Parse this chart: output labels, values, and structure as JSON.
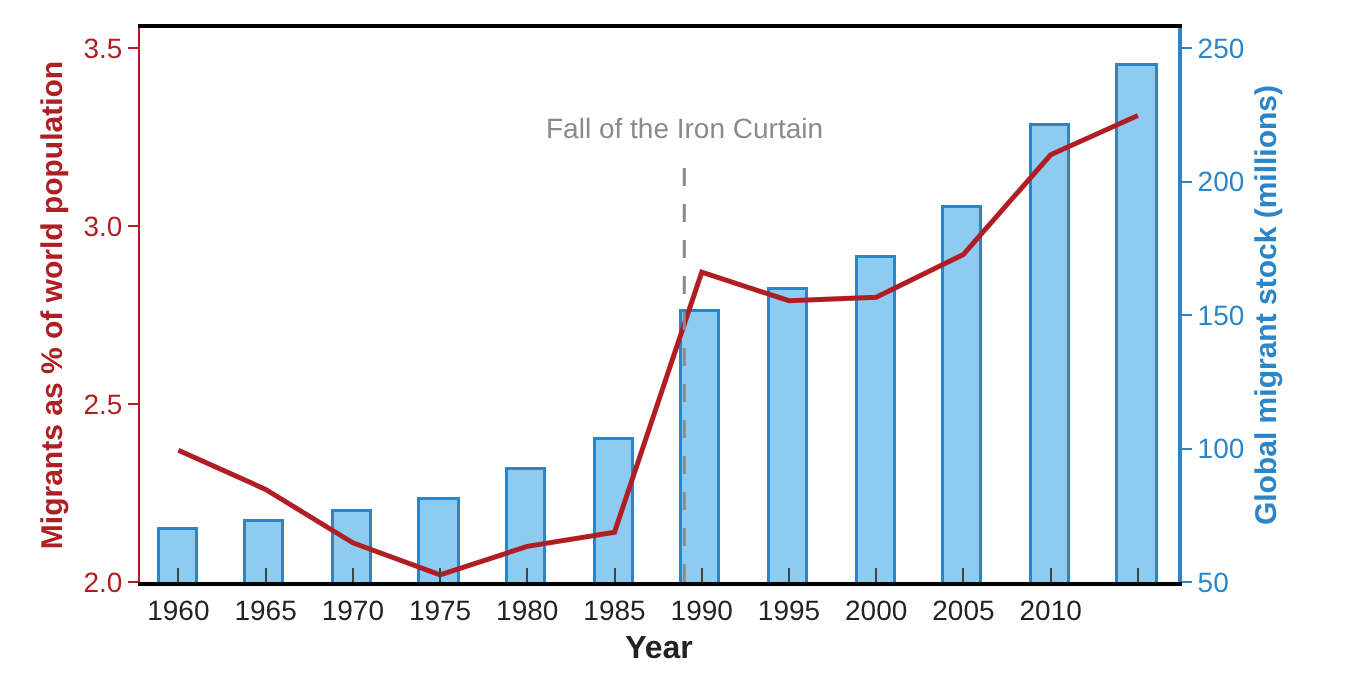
{
  "chart_data": {
    "type": "bar",
    "xlabel": "Year",
    "ylabel": "Migrants as % of world population",
    "y2label": "Global migrant stock (millions)",
    "x": [
      1960,
      1965,
      1970,
      1975,
      1980,
      1985,
      1990,
      1995,
      2000,
      2005,
      2010,
      2015
    ],
    "series": [
      {
        "axis": "y2",
        "color": "#8ecbf0",
        "values": [
          69.5,
          72.5,
          76,
          80.7,
          92,
          103,
          151,
          159,
          171,
          190,
          221,
          243
        ]
      },
      {
        "type": "line",
        "axis": "y",
        "color": "#b01e23",
        "values": [
          2.37,
          2.26,
          2.11,
          2.02,
          2.1,
          2.14,
          2.87,
          2.79,
          2.8,
          2.92,
          3.2,
          3.31
        ]
      }
    ],
    "xlim": [
      1957.8,
      2017.3
    ],
    "xticks": [
      1960,
      1965,
      1970,
      1975,
      1980,
      1985,
      1990,
      1995,
      2000,
      2005,
      2010,
      {
        "value": 2015,
        "label": null
      }
    ],
    "ylim": [
      2.0,
      3.556
    ],
    "yticks": [
      {
        "value": 2.0,
        "label": "2.0"
      },
      2.5,
      {
        "value": 3.0,
        "label": "3.0"
      },
      3.5
    ],
    "y2lim": [
      50,
      257.5
    ],
    "y2ticks": [
      50,
      100,
      150,
      200,
      250
    ],
    "ref_lines": [
      {
        "axis": "x",
        "value": 1989,
        "label": "Fall of the Iron Curtain",
        "color": "#8a8a8a",
        "line_style": "dashed"
      }
    ],
    "marker": "none",
    "line_style": "solid"
  }
}
